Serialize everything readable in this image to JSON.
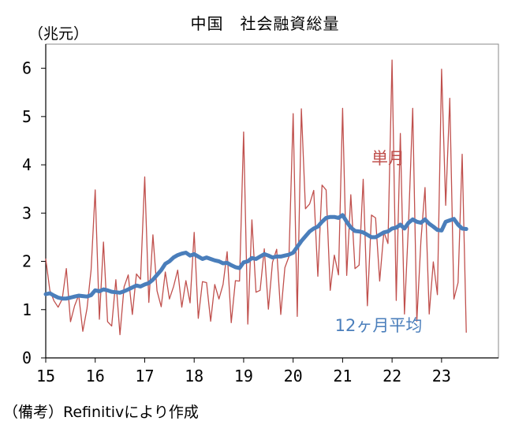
{
  "chart_data": {
    "type": "line",
    "title": "中国　社会融資総量",
    "unit_label": "（兆元）",
    "source": "（備考）Refinitivにより作成",
    "ylim": [
      0,
      6.5
    ],
    "yticks": [
      "0",
      "1",
      "2",
      "3",
      "4",
      "5",
      "6"
    ],
    "xlim": [
      2015,
      2023.8
    ],
    "xticks": [
      "15",
      "16",
      "17",
      "18",
      "19",
      "20",
      "21",
      "22",
      "23"
    ],
    "series": [
      {
        "name": "単月",
        "color": "#c0504d",
        "start_year": 2015,
        "values": [
          2.05,
          1.4,
          1.18,
          1.05,
          1.22,
          1.85,
          0.75,
          1.08,
          1.3,
          0.55,
          1.02,
          1.82,
          3.48,
          0.8,
          2.4,
          0.75,
          0.66,
          1.62,
          0.48,
          1.47,
          1.72,
          0.9,
          1.74,
          1.63,
          3.75,
          1.15,
          2.55,
          1.39,
          1.06,
          1.78,
          1.22,
          1.48,
          1.82,
          1.05,
          1.6,
          1.14,
          2.6,
          0.82,
          1.58,
          1.56,
          0.76,
          1.52,
          1.22,
          1.52,
          2.2,
          0.73,
          1.6,
          1.59,
          4.68,
          0.7,
          2.86,
          1.36,
          1.4,
          2.26,
          1.01,
          1.98,
          2.25,
          0.9,
          1.87,
          2.1,
          5.06,
          0.86,
          5.16,
          3.09,
          3.19,
          3.47,
          1.69,
          3.58,
          3.48,
          1.4,
          2.13,
          1.72,
          5.17,
          1.71,
          3.38,
          1.85,
          1.92,
          3.7,
          1.08,
          2.96,
          2.9,
          1.59,
          2.61,
          2.37,
          6.17,
          1.19,
          4.65,
          0.91,
          2.79,
          5.17,
          0.76,
          2.43,
          3.53,
          0.91,
          1.99,
          1.31,
          5.98,
          3.16,
          5.38,
          1.22,
          1.56,
          4.22,
          0.53
        ]
      },
      {
        "name": "12ヶ月平均",
        "color": "#4a7ebb",
        "start_year": 2015,
        "values": [
          1.32,
          1.34,
          1.29,
          1.25,
          1.23,
          1.23,
          1.25,
          1.27,
          1.29,
          1.28,
          1.27,
          1.3,
          1.4,
          1.38,
          1.42,
          1.4,
          1.37,
          1.36,
          1.35,
          1.38,
          1.42,
          1.46,
          1.5,
          1.48,
          1.52,
          1.55,
          1.62,
          1.72,
          1.82,
          1.95,
          2.0,
          2.08,
          2.13,
          2.16,
          2.18,
          2.12,
          2.15,
          2.1,
          2.05,
          2.08,
          2.05,
          2.02,
          2.0,
          1.96,
          1.97,
          1.92,
          1.88,
          1.86,
          1.98,
          2.0,
          2.07,
          2.05,
          2.1,
          2.15,
          2.12,
          2.08,
          2.1,
          2.1,
          2.12,
          2.14,
          2.18,
          2.3,
          2.42,
          2.52,
          2.62,
          2.68,
          2.72,
          2.82,
          2.9,
          2.92,
          2.92,
          2.9,
          2.96,
          2.82,
          2.7,
          2.63,
          2.62,
          2.6,
          2.55,
          2.5,
          2.5,
          2.55,
          2.6,
          2.62,
          2.68,
          2.7,
          2.76,
          2.68,
          2.8,
          2.87,
          2.82,
          2.8,
          2.87,
          2.78,
          2.72,
          2.65,
          2.64,
          2.82,
          2.85,
          2.88,
          2.76,
          2.68,
          2.67
        ]
      }
    ],
    "labels": {
      "monthly": "単月",
      "average": "12ヶ月平均"
    }
  }
}
